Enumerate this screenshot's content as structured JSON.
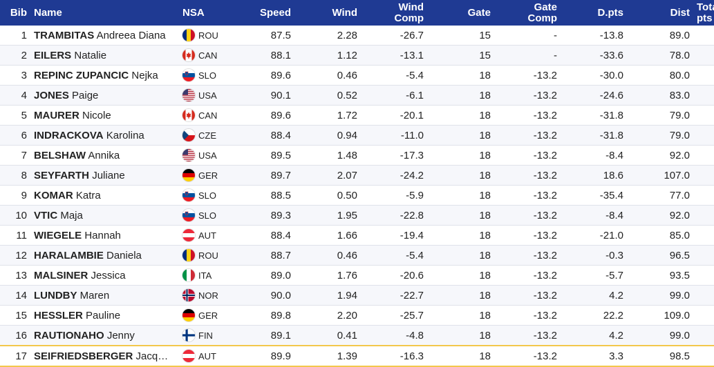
{
  "headers": {
    "bib": "Bib",
    "name": "Name",
    "nsa": "NSA",
    "speed": "Speed",
    "wind": "Wind",
    "wind_comp": [
      "Wind",
      "Comp"
    ],
    "gate": "Gate",
    "gate_comp": [
      "Gate",
      "Comp"
    ],
    "dpts": "D.pts",
    "dist": "Dist",
    "total": [
      "Total",
      "pts"
    ]
  },
  "rows": [
    {
      "bib": "1",
      "last": "TRAMBITAS",
      "first": "Andreea Diana",
      "nsa": "ROU",
      "speed": "87.5",
      "wind": "2.28",
      "wind_comp": "-26.7",
      "gate": "15",
      "gate_comp": "-",
      "dpts": "-13.8",
      "dist": "89.0",
      "total": ""
    },
    {
      "bib": "2",
      "last": "EILERS",
      "first": "Natalie",
      "nsa": "CAN",
      "speed": "88.1",
      "wind": "1.12",
      "wind_comp": "-13.1",
      "gate": "15",
      "gate_comp": "-",
      "dpts": "-33.6",
      "dist": "78.0",
      "total": ""
    },
    {
      "bib": "3",
      "last": "REPINC ZUPANCIC",
      "first": "Nejka",
      "nsa": "SLO",
      "speed": "89.6",
      "wind": "0.46",
      "wind_comp": "-5.4",
      "gate": "18",
      "gate_comp": "-13.2",
      "dpts": "-30.0",
      "dist": "80.0",
      "total": ""
    },
    {
      "bib": "4",
      "last": "JONES",
      "first": "Paige",
      "nsa": "USA",
      "speed": "90.1",
      "wind": "0.52",
      "wind_comp": "-6.1",
      "gate": "18",
      "gate_comp": "-13.2",
      "dpts": "-24.6",
      "dist": "83.0",
      "total": ""
    },
    {
      "bib": "5",
      "last": "MAURER",
      "first": "Nicole",
      "nsa": "CAN",
      "speed": "89.6",
      "wind": "1.72",
      "wind_comp": "-20.1",
      "gate": "18",
      "gate_comp": "-13.2",
      "dpts": "-31.8",
      "dist": "79.0",
      "total": ""
    },
    {
      "bib": "6",
      "last": "INDRACKOVA",
      "first": "Karolina",
      "nsa": "CZE",
      "speed": "88.4",
      "wind": "0.94",
      "wind_comp": "-11.0",
      "gate": "18",
      "gate_comp": "-13.2",
      "dpts": "-31.8",
      "dist": "79.0",
      "total": ""
    },
    {
      "bib": "7",
      "last": "BELSHAW",
      "first": "Annika",
      "nsa": "USA",
      "speed": "89.5",
      "wind": "1.48",
      "wind_comp": "-17.3",
      "gate": "18",
      "gate_comp": "-13.2",
      "dpts": "-8.4",
      "dist": "92.0",
      "total": ""
    },
    {
      "bib": "8",
      "last": "SEYFARTH",
      "first": "Juliane",
      "nsa": "GER",
      "speed": "89.7",
      "wind": "2.07",
      "wind_comp": "-24.2",
      "gate": "18",
      "gate_comp": "-13.2",
      "dpts": "18.6",
      "dist": "107.0",
      "total": ""
    },
    {
      "bib": "9",
      "last": "KOMAR",
      "first": "Katra",
      "nsa": "SLO",
      "speed": "88.5",
      "wind": "0.50",
      "wind_comp": "-5.9",
      "gate": "18",
      "gate_comp": "-13.2",
      "dpts": "-35.4",
      "dist": "77.0",
      "total": ""
    },
    {
      "bib": "10",
      "last": "VTIC",
      "first": "Maja",
      "nsa": "SLO",
      "speed": "89.3",
      "wind": "1.95",
      "wind_comp": "-22.8",
      "gate": "18",
      "gate_comp": "-13.2",
      "dpts": "-8.4",
      "dist": "92.0",
      "total": ""
    },
    {
      "bib": "11",
      "last": "WIEGELE",
      "first": "Hannah",
      "nsa": "AUT",
      "speed": "88.4",
      "wind": "1.66",
      "wind_comp": "-19.4",
      "gate": "18",
      "gate_comp": "-13.2",
      "dpts": "-21.0",
      "dist": "85.0",
      "total": ""
    },
    {
      "bib": "12",
      "last": "HARALAMBIE",
      "first": "Daniela",
      "nsa": "ROU",
      "speed": "88.7",
      "wind": "0.46",
      "wind_comp": "-5.4",
      "gate": "18",
      "gate_comp": "-13.2",
      "dpts": "-0.3",
      "dist": "96.5",
      "total": ""
    },
    {
      "bib": "13",
      "last": "MALSINER",
      "first": "Jessica",
      "nsa": "ITA",
      "speed": "89.0",
      "wind": "1.76",
      "wind_comp": "-20.6",
      "gate": "18",
      "gate_comp": "-13.2",
      "dpts": "-5.7",
      "dist": "93.5",
      "total": ""
    },
    {
      "bib": "14",
      "last": "LUNDBY",
      "first": "Maren",
      "nsa": "NOR",
      "speed": "90.0",
      "wind": "1.94",
      "wind_comp": "-22.7",
      "gate": "18",
      "gate_comp": "-13.2",
      "dpts": "4.2",
      "dist": "99.0",
      "total": ""
    },
    {
      "bib": "15",
      "last": "HESSLER",
      "first": "Pauline",
      "nsa": "GER",
      "speed": "89.8",
      "wind": "2.20",
      "wind_comp": "-25.7",
      "gate": "18",
      "gate_comp": "-13.2",
      "dpts": "22.2",
      "dist": "109.0",
      "total": ""
    },
    {
      "bib": "16",
      "last": "RAUTIONAHO",
      "first": "Jenny",
      "nsa": "FIN",
      "speed": "89.1",
      "wind": "0.41",
      "wind_comp": "-4.8",
      "gate": "18",
      "gate_comp": "-13.2",
      "dpts": "4.2",
      "dist": "99.0",
      "total": ""
    },
    {
      "bib": "17",
      "last": "SEIFRIEDSBERGER",
      "first": "Jacq…",
      "nsa": "AUT",
      "speed": "89.9",
      "wind": "1.39",
      "wind_comp": "-16.3",
      "gate": "18",
      "gate_comp": "-13.2",
      "dpts": "3.3",
      "dist": "98.5",
      "total": "",
      "highlight": true
    }
  ],
  "flag_icons": {
    "ROU": "romania-flag-icon",
    "CAN": "canada-flag-icon",
    "SLO": "slovenia-flag-icon",
    "USA": "usa-flag-icon",
    "CZE": "czech-flag-icon",
    "GER": "germany-flag-icon",
    "AUT": "austria-flag-icon",
    "ITA": "italy-flag-icon",
    "NOR": "norway-flag-icon",
    "FIN": "finland-flag-icon"
  },
  "colors": {
    "header_bg": "#1f3a93",
    "highlight_border": "#f3c74b"
  }
}
